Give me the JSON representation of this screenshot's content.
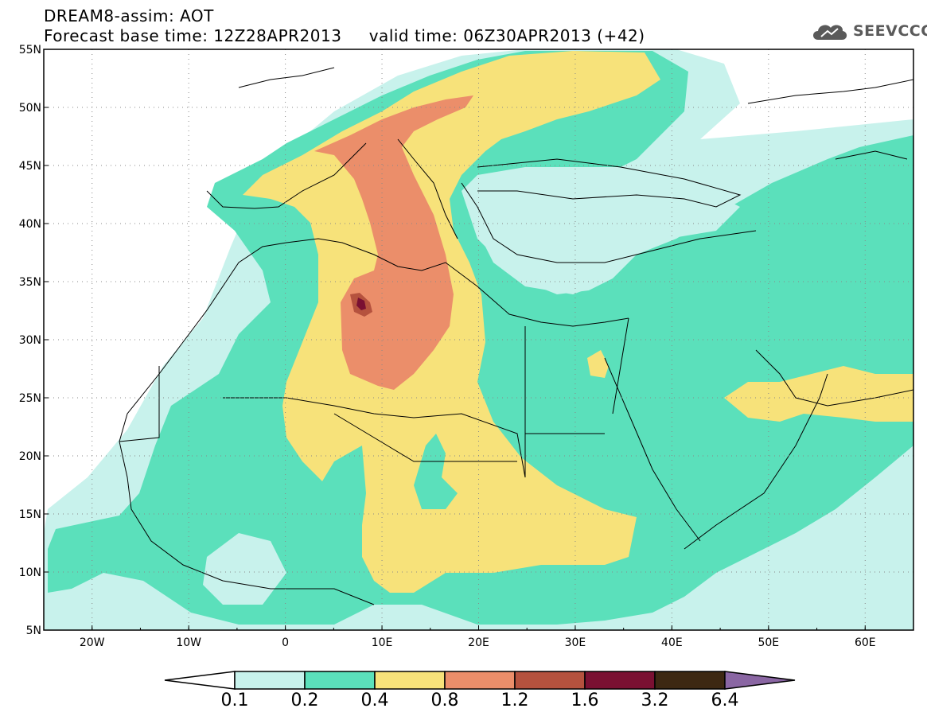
{
  "header": {
    "title_line1": "DREAM8-assim: AOT",
    "title_line2": "Forecast base time: 12Z28APR2013     valid time: 06Z30APR2013 (+42)",
    "logo_text": "SEEVCCC"
  },
  "map": {
    "lon_range": [
      -25,
      65
    ],
    "lat_range": [
      5,
      55
    ],
    "lon_ticks": [
      "20W",
      "10W",
      "0",
      "10E",
      "20E",
      "30E",
      "40E",
      "50E",
      "60E"
    ],
    "lat_ticks": [
      "55N",
      "50N",
      "45N",
      "40N",
      "35N",
      "30N",
      "25N",
      "20N",
      "15N",
      "10N",
      "5N"
    ],
    "colors": {
      "ocean_background": "#ffffff",
      "coastline": "#000000",
      "gridline": "#888888"
    }
  },
  "legend": {
    "labels": [
      "0.1",
      "0.2",
      "0.4",
      "0.8",
      "1.2",
      "1.6",
      "3.2",
      "6.4"
    ],
    "colors": [
      "#c8f2ec",
      "#5be0bb",
      "#f7e27a",
      "#eb8e6a",
      "#b5523e",
      "#7a1032",
      "#3d2812",
      "#8a66a3"
    ],
    "under_color": "#ffffff"
  }
}
